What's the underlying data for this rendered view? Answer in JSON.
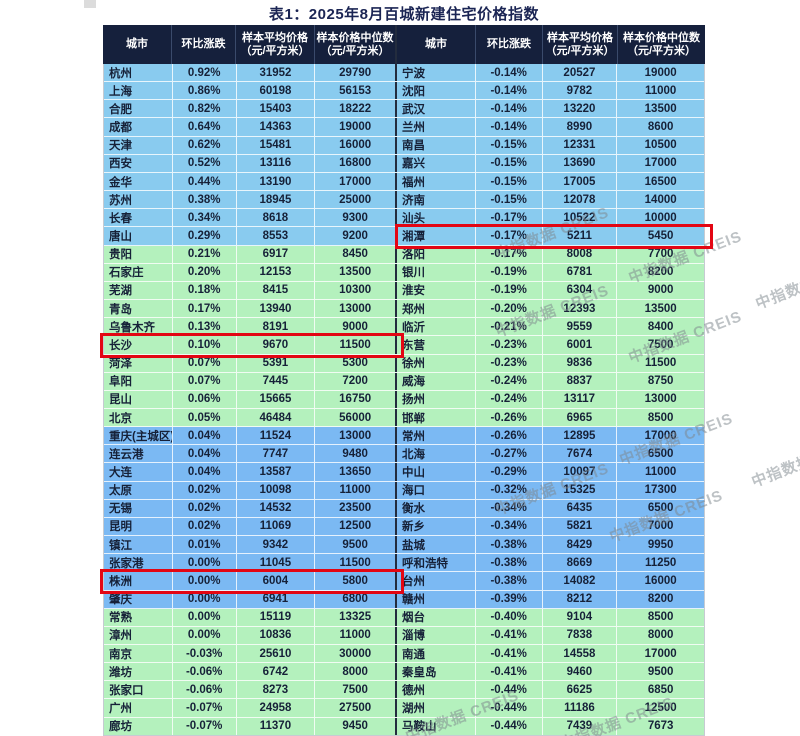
{
  "title": "表1：2025年8月百城新建住宅价格指数",
  "watermark_text": "中指数据 CREIS",
  "header": {
    "city": "城市",
    "change": "环比涨跌",
    "avg_price": "样本平均价格",
    "median_price": "样本价格中位数",
    "unit": "（元/平方米）"
  },
  "colors": {
    "header_bg": "#15203C",
    "light_blue": "#89CBEF",
    "mid_blue": "#7BB9F3",
    "green": "#B4F1BD",
    "highlight_red": "#E30613",
    "title_text": "#1B2554"
  },
  "row_groups": [
    {
      "start": 1,
      "end": 10,
      "color": "#89CBEF"
    },
    {
      "start": 11,
      "end": 20,
      "color": "#B4F1BD"
    },
    {
      "start": 21,
      "end": 30,
      "color": "#7BB9F3"
    },
    {
      "start": 31,
      "end": 37,
      "color": "#B4F1BD"
    }
  ],
  "highlights": [
    {
      "side": "left",
      "row": 16,
      "city": "长沙"
    },
    {
      "side": "left",
      "row": 29,
      "city": "株洲"
    },
    {
      "side": "right",
      "row": 10,
      "city": "湘潭"
    }
  ],
  "rows": [
    {
      "left": [
        "杭州",
        "0.92%",
        "31952",
        "29790"
      ],
      "right": [
        "宁波",
        "-0.14%",
        "20527",
        "19000"
      ]
    },
    {
      "left": [
        "上海",
        "0.86%",
        "60198",
        "56153"
      ],
      "right": [
        "沈阳",
        "-0.14%",
        "9782",
        "11000"
      ]
    },
    {
      "left": [
        "合肥",
        "0.82%",
        "15403",
        "18222"
      ],
      "right": [
        "武汉",
        "-0.14%",
        "13220",
        "13500"
      ]
    },
    {
      "left": [
        "成都",
        "0.64%",
        "14363",
        "19000"
      ],
      "right": [
        "兰州",
        "-0.14%",
        "8990",
        "8600"
      ]
    },
    {
      "left": [
        "天津",
        "0.62%",
        "15481",
        "16000"
      ],
      "right": [
        "南昌",
        "-0.15%",
        "12331",
        "10500"
      ]
    },
    {
      "left": [
        "西安",
        "0.52%",
        "13116",
        "16800"
      ],
      "right": [
        "嘉兴",
        "-0.15%",
        "13690",
        "17000"
      ]
    },
    {
      "left": [
        "金华",
        "0.44%",
        "13190",
        "17000"
      ],
      "right": [
        "福州",
        "-0.15%",
        "17005",
        "16500"
      ]
    },
    {
      "left": [
        "苏州",
        "0.38%",
        "18945",
        "25000"
      ],
      "right": [
        "济南",
        "-0.15%",
        "12078",
        "14000"
      ]
    },
    {
      "left": [
        "长春",
        "0.34%",
        "8618",
        "9300"
      ],
      "right": [
        "汕头",
        "-0.17%",
        "10522",
        "10000"
      ]
    },
    {
      "left": [
        "唐山",
        "0.29%",
        "8553",
        "9200"
      ],
      "right": [
        "湘潭",
        "-0.17%",
        "5211",
        "5450"
      ]
    },
    {
      "left": [
        "贵阳",
        "0.21%",
        "6917",
        "8450"
      ],
      "right": [
        "洛阳",
        "-0.17%",
        "8008",
        "7700"
      ]
    },
    {
      "left": [
        "石家庄",
        "0.20%",
        "12153",
        "13500"
      ],
      "right": [
        "银川",
        "-0.19%",
        "6781",
        "8200"
      ]
    },
    {
      "left": [
        "芜湖",
        "0.18%",
        "8415",
        "10300"
      ],
      "right": [
        "淮安",
        "-0.19%",
        "6304",
        "9000"
      ]
    },
    {
      "left": [
        "青岛",
        "0.17%",
        "13940",
        "13000"
      ],
      "right": [
        "郑州",
        "-0.20%",
        "12393",
        "13500"
      ]
    },
    {
      "left": [
        "乌鲁木齐",
        "0.13%",
        "8191",
        "9000"
      ],
      "right": [
        "临沂",
        "-0.21%",
        "9559",
        "8400"
      ]
    },
    {
      "left": [
        "长沙",
        "0.10%",
        "9670",
        "11500"
      ],
      "right": [
        "东营",
        "-0.23%",
        "6001",
        "7500"
      ]
    },
    {
      "left": [
        "菏泽",
        "0.07%",
        "5391",
        "5300"
      ],
      "right": [
        "徐州",
        "-0.23%",
        "9836",
        "11500"
      ]
    },
    {
      "left": [
        "阜阳",
        "0.07%",
        "7445",
        "7200"
      ],
      "right": [
        "威海",
        "-0.24%",
        "8837",
        "8750"
      ]
    },
    {
      "left": [
        "昆山",
        "0.06%",
        "15665",
        "16750"
      ],
      "right": [
        "扬州",
        "-0.24%",
        "13117",
        "13000"
      ]
    },
    {
      "left": [
        "北京",
        "0.05%",
        "46484",
        "56000"
      ],
      "right": [
        "邯郸",
        "-0.26%",
        "6965",
        "8500"
      ]
    },
    {
      "left": [
        "重庆(主城区)",
        "0.04%",
        "11524",
        "13000"
      ],
      "right": [
        "常州",
        "-0.26%",
        "12895",
        "17000"
      ]
    },
    {
      "left": [
        "连云港",
        "0.04%",
        "7747",
        "9480"
      ],
      "right": [
        "北海",
        "-0.27%",
        "7674",
        "6500"
      ]
    },
    {
      "left": [
        "大连",
        "0.04%",
        "13587",
        "13650"
      ],
      "right": [
        "中山",
        "-0.29%",
        "10097",
        "11000"
      ]
    },
    {
      "left": [
        "太原",
        "0.02%",
        "10098",
        "11000"
      ],
      "right": [
        "海口",
        "-0.32%",
        "15325",
        "17300"
      ]
    },
    {
      "left": [
        "无锡",
        "0.02%",
        "14532",
        "23500"
      ],
      "right": [
        "衡水",
        "-0.34%",
        "6435",
        "6500"
      ]
    },
    {
      "left": [
        "昆明",
        "0.02%",
        "11069",
        "12500"
      ],
      "right": [
        "新乡",
        "-0.34%",
        "5821",
        "7000"
      ]
    },
    {
      "left": [
        "镇江",
        "0.01%",
        "9342",
        "9500"
      ],
      "right": [
        "盐城",
        "-0.38%",
        "8429",
        "9950"
      ]
    },
    {
      "left": [
        "张家港",
        "0.00%",
        "11045",
        "11500"
      ],
      "right": [
        "呼和浩特",
        "-0.38%",
        "8669",
        "11250"
      ]
    },
    {
      "left": [
        "株洲",
        "0.00%",
        "6004",
        "5800"
      ],
      "right": [
        "台州",
        "-0.38%",
        "14082",
        "16000"
      ]
    },
    {
      "left": [
        "肇庆",
        "0.00%",
        "6941",
        "6800"
      ],
      "right": [
        "赣州",
        "-0.39%",
        "8212",
        "8200"
      ]
    },
    {
      "left": [
        "常熟",
        "0.00%",
        "15119",
        "13325"
      ],
      "right": [
        "烟台",
        "-0.40%",
        "9104",
        "8500"
      ]
    },
    {
      "left": [
        "漳州",
        "0.00%",
        "10836",
        "11000"
      ],
      "right": [
        "淄博",
        "-0.41%",
        "7838",
        "8000"
      ]
    },
    {
      "left": [
        "南京",
        "-0.03%",
        "25610",
        "30000"
      ],
      "right": [
        "南通",
        "-0.41%",
        "14558",
        "17000"
      ]
    },
    {
      "left": [
        "潍坊",
        "-0.06%",
        "6742",
        "8000"
      ],
      "right": [
        "秦皇岛",
        "-0.41%",
        "9460",
        "9500"
      ]
    },
    {
      "left": [
        "张家口",
        "-0.06%",
        "8273",
        "7500"
      ],
      "right": [
        "德州",
        "-0.44%",
        "6625",
        "6850"
      ]
    },
    {
      "left": [
        "广州",
        "-0.07%",
        "24958",
        "27500"
      ],
      "right": [
        "湖州",
        "-0.44%",
        "11186",
        "12500"
      ]
    },
    {
      "left": [
        "廊坊",
        "-0.07%",
        "11370",
        "9450"
      ],
      "right": [
        "马鞍山",
        "-0.44%",
        "7439",
        "7673"
      ]
    }
  ]
}
